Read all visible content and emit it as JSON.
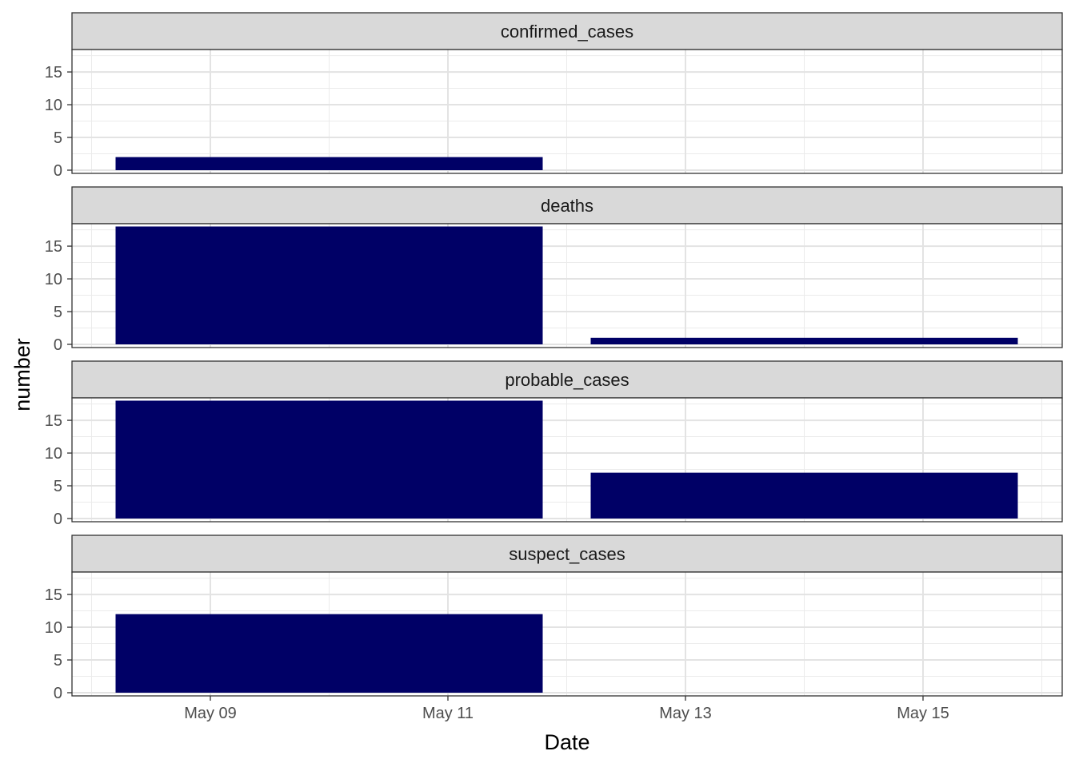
{
  "chart_data": {
    "type": "bar",
    "facet_layout": "vertical",
    "xlabel": "Date",
    "ylabel": "number",
    "x_tick_labels": [
      "May 09",
      "May 11",
      "May 13",
      "May 15"
    ],
    "x_tick_dates": [
      "2020-05-09",
      "2020-05-11",
      "2020-05-13",
      "2020-05-15"
    ],
    "xlim": [
      "2020-05-08",
      "2020-05-16"
    ],
    "ylim": [
      0,
      18.9
    ],
    "y_ticks": [
      0,
      5,
      10,
      15
    ],
    "grid": true,
    "bar_color": "#000066",
    "bins": [
      {
        "start": "2020-05-08",
        "end": "2020-05-12"
      },
      {
        "start": "2020-05-12",
        "end": "2020-05-16"
      }
    ],
    "facets": [
      {
        "name": "confirmed_cases",
        "values": [
          2,
          0
        ]
      },
      {
        "name": "deaths",
        "values": [
          18,
          1
        ]
      },
      {
        "name": "probable_cases",
        "values": [
          18,
          7
        ]
      },
      {
        "name": "suspect_cases",
        "values": [
          12,
          0
        ]
      }
    ]
  }
}
